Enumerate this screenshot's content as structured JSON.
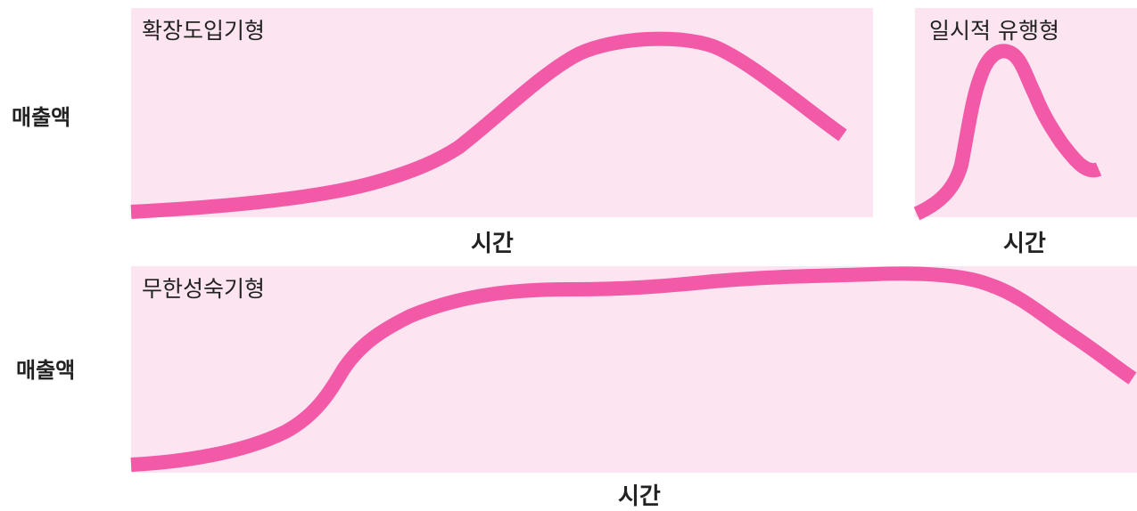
{
  "diagram": {
    "curve_color": "#f25aa8",
    "panel_color": "#fce4f0",
    "panels": {
      "expansion": {
        "title": "확장도입기형",
        "xlabel": "시간"
      },
      "fad": {
        "title": "일시적 유행형",
        "xlabel": "시간"
      },
      "mature": {
        "title": "무한성숙기형",
        "xlabel": "시간"
      }
    },
    "ylabels": {
      "top": "매출액",
      "bottom": "매출액"
    }
  }
}
